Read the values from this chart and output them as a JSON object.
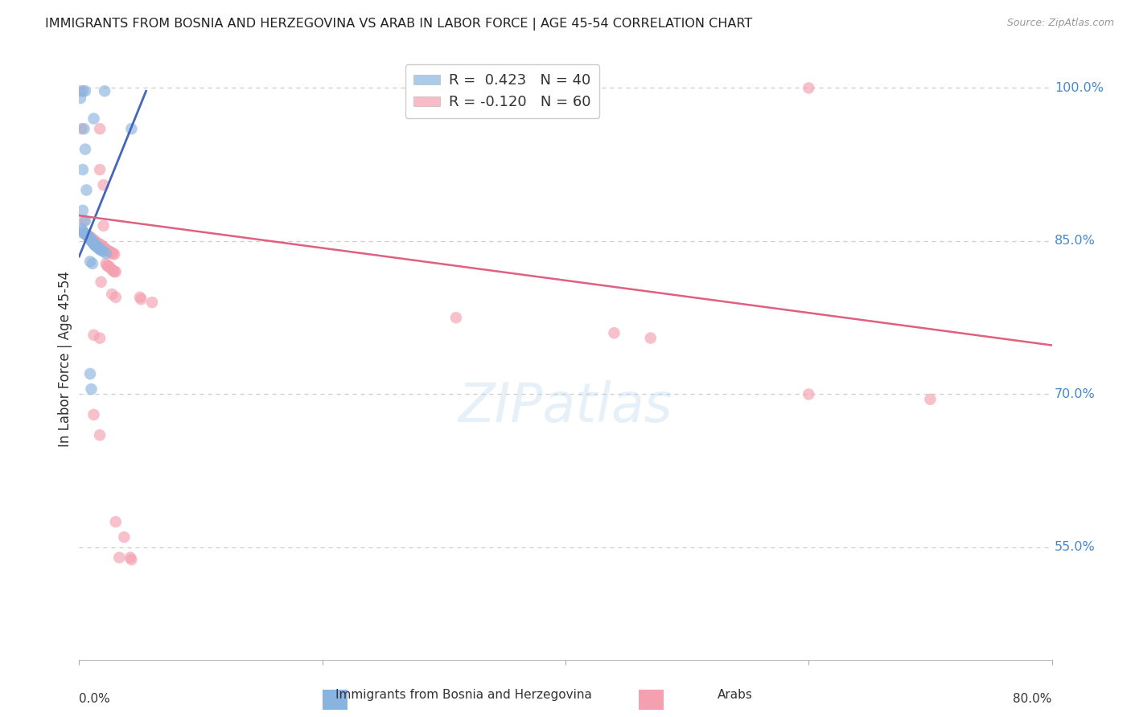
{
  "title": "IMMIGRANTS FROM BOSNIA AND HERZEGOVINA VS ARAB IN LABOR FORCE | AGE 45-54 CORRELATION CHART",
  "source": "Source: ZipAtlas.com",
  "ylabel": "In Labor Force | Age 45-54",
  "xlabel_bottom_left": "0.0%",
  "xlabel_bottom_right": "80.0%",
  "ytick_labels": [
    "100.0%",
    "85.0%",
    "70.0%",
    "55.0%"
  ],
  "ytick_values": [
    1.0,
    0.85,
    0.7,
    0.55
  ],
  "xlim": [
    0.0,
    0.8
  ],
  "ylim": [
    0.44,
    1.03
  ],
  "bg_color": "#ffffff",
  "watermark_text": "ZIPatlas",
  "legend_r_blue": "R =  0.423",
  "legend_n_blue": "N = 40",
  "legend_r_pink": "R = -0.120",
  "legend_n_pink": "N = 60",
  "blue_color": "#8ab4e0",
  "pink_color": "#f4a0b0",
  "blue_line_color": "#4466bb",
  "pink_line_color": "#e06080",
  "grid_color": "#cccccc",
  "title_color": "#222222",
  "axis_label_color": "#333333",
  "right_label_color": "#4488cc",
  "blue_scatter": [
    [
      0.001,
      0.99
    ],
    [
      0.003,
      0.997
    ],
    [
      0.005,
      0.997
    ],
    [
      0.021,
      0.997
    ],
    [
      0.012,
      0.97
    ],
    [
      0.004,
      0.96
    ],
    [
      0.005,
      0.94
    ],
    [
      0.003,
      0.92
    ],
    [
      0.006,
      0.9
    ],
    [
      0.003,
      0.88
    ],
    [
      0.005,
      0.87
    ],
    [
      0.002,
      0.862
    ],
    [
      0.003,
      0.86
    ],
    [
      0.004,
      0.858
    ],
    [
      0.005,
      0.857
    ],
    [
      0.006,
      0.856
    ],
    [
      0.007,
      0.855
    ],
    [
      0.008,
      0.854
    ],
    [
      0.008,
      0.853
    ],
    [
      0.009,
      0.852
    ],
    [
      0.01,
      0.851
    ],
    [
      0.01,
      0.85
    ],
    [
      0.011,
      0.849
    ],
    [
      0.012,
      0.848
    ],
    [
      0.012,
      0.847
    ],
    [
      0.013,
      0.847
    ],
    [
      0.013,
      0.846
    ],
    [
      0.014,
      0.845
    ],
    [
      0.015,
      0.845
    ],
    [
      0.015,
      0.844
    ],
    [
      0.016,
      0.843
    ],
    [
      0.017,
      0.842
    ],
    [
      0.018,
      0.841
    ],
    [
      0.02,
      0.84
    ],
    [
      0.022,
      0.838
    ],
    [
      0.009,
      0.83
    ],
    [
      0.011,
      0.828
    ],
    [
      0.009,
      0.72
    ],
    [
      0.01,
      0.705
    ],
    [
      0.043,
      0.96
    ]
  ],
  "pink_scatter": [
    [
      0.001,
      0.997
    ],
    [
      0.002,
      0.96
    ],
    [
      0.017,
      0.96
    ],
    [
      0.017,
      0.92
    ],
    [
      0.02,
      0.905
    ],
    [
      0.004,
      0.87
    ],
    [
      0.02,
      0.865
    ],
    [
      0.003,
      0.858
    ],
    [
      0.006,
      0.856
    ],
    [
      0.008,
      0.855
    ],
    [
      0.009,
      0.854
    ],
    [
      0.01,
      0.853
    ],
    [
      0.011,
      0.852
    ],
    [
      0.012,
      0.851
    ],
    [
      0.013,
      0.85
    ],
    [
      0.014,
      0.849
    ],
    [
      0.015,
      0.848
    ],
    [
      0.016,
      0.847
    ],
    [
      0.017,
      0.847
    ],
    [
      0.018,
      0.846
    ],
    [
      0.019,
      0.845
    ],
    [
      0.02,
      0.844
    ],
    [
      0.021,
      0.843
    ],
    [
      0.022,
      0.842
    ],
    [
      0.023,
      0.841
    ],
    [
      0.024,
      0.84
    ],
    [
      0.025,
      0.84
    ],
    [
      0.026,
      0.839
    ],
    [
      0.027,
      0.838
    ],
    [
      0.028,
      0.838
    ],
    [
      0.029,
      0.837
    ],
    [
      0.022,
      0.828
    ],
    [
      0.023,
      0.826
    ],
    [
      0.024,
      0.825
    ],
    [
      0.025,
      0.825
    ],
    [
      0.027,
      0.822
    ],
    [
      0.028,
      0.821
    ],
    [
      0.029,
      0.82
    ],
    [
      0.03,
      0.82
    ],
    [
      0.018,
      0.81
    ],
    [
      0.027,
      0.798
    ],
    [
      0.03,
      0.795
    ],
    [
      0.05,
      0.795
    ],
    [
      0.051,
      0.793
    ],
    [
      0.06,
      0.79
    ],
    [
      0.012,
      0.758
    ],
    [
      0.017,
      0.755
    ],
    [
      0.012,
      0.68
    ],
    [
      0.017,
      0.66
    ],
    [
      0.03,
      0.575
    ],
    [
      0.037,
      0.56
    ],
    [
      0.033,
      0.54
    ],
    [
      0.042,
      0.54
    ],
    [
      0.043,
      0.538
    ],
    [
      0.6,
      1.0
    ],
    [
      0.31,
      0.775
    ],
    [
      0.44,
      0.76
    ],
    [
      0.47,
      0.755
    ],
    [
      0.6,
      0.7
    ],
    [
      0.7,
      0.695
    ]
  ],
  "blue_line_x": [
    0.0,
    0.055
  ],
  "blue_line_y": [
    0.835,
    0.997
  ],
  "pink_line_x": [
    0.0,
    0.8
  ],
  "pink_line_y": [
    0.875,
    0.748
  ]
}
